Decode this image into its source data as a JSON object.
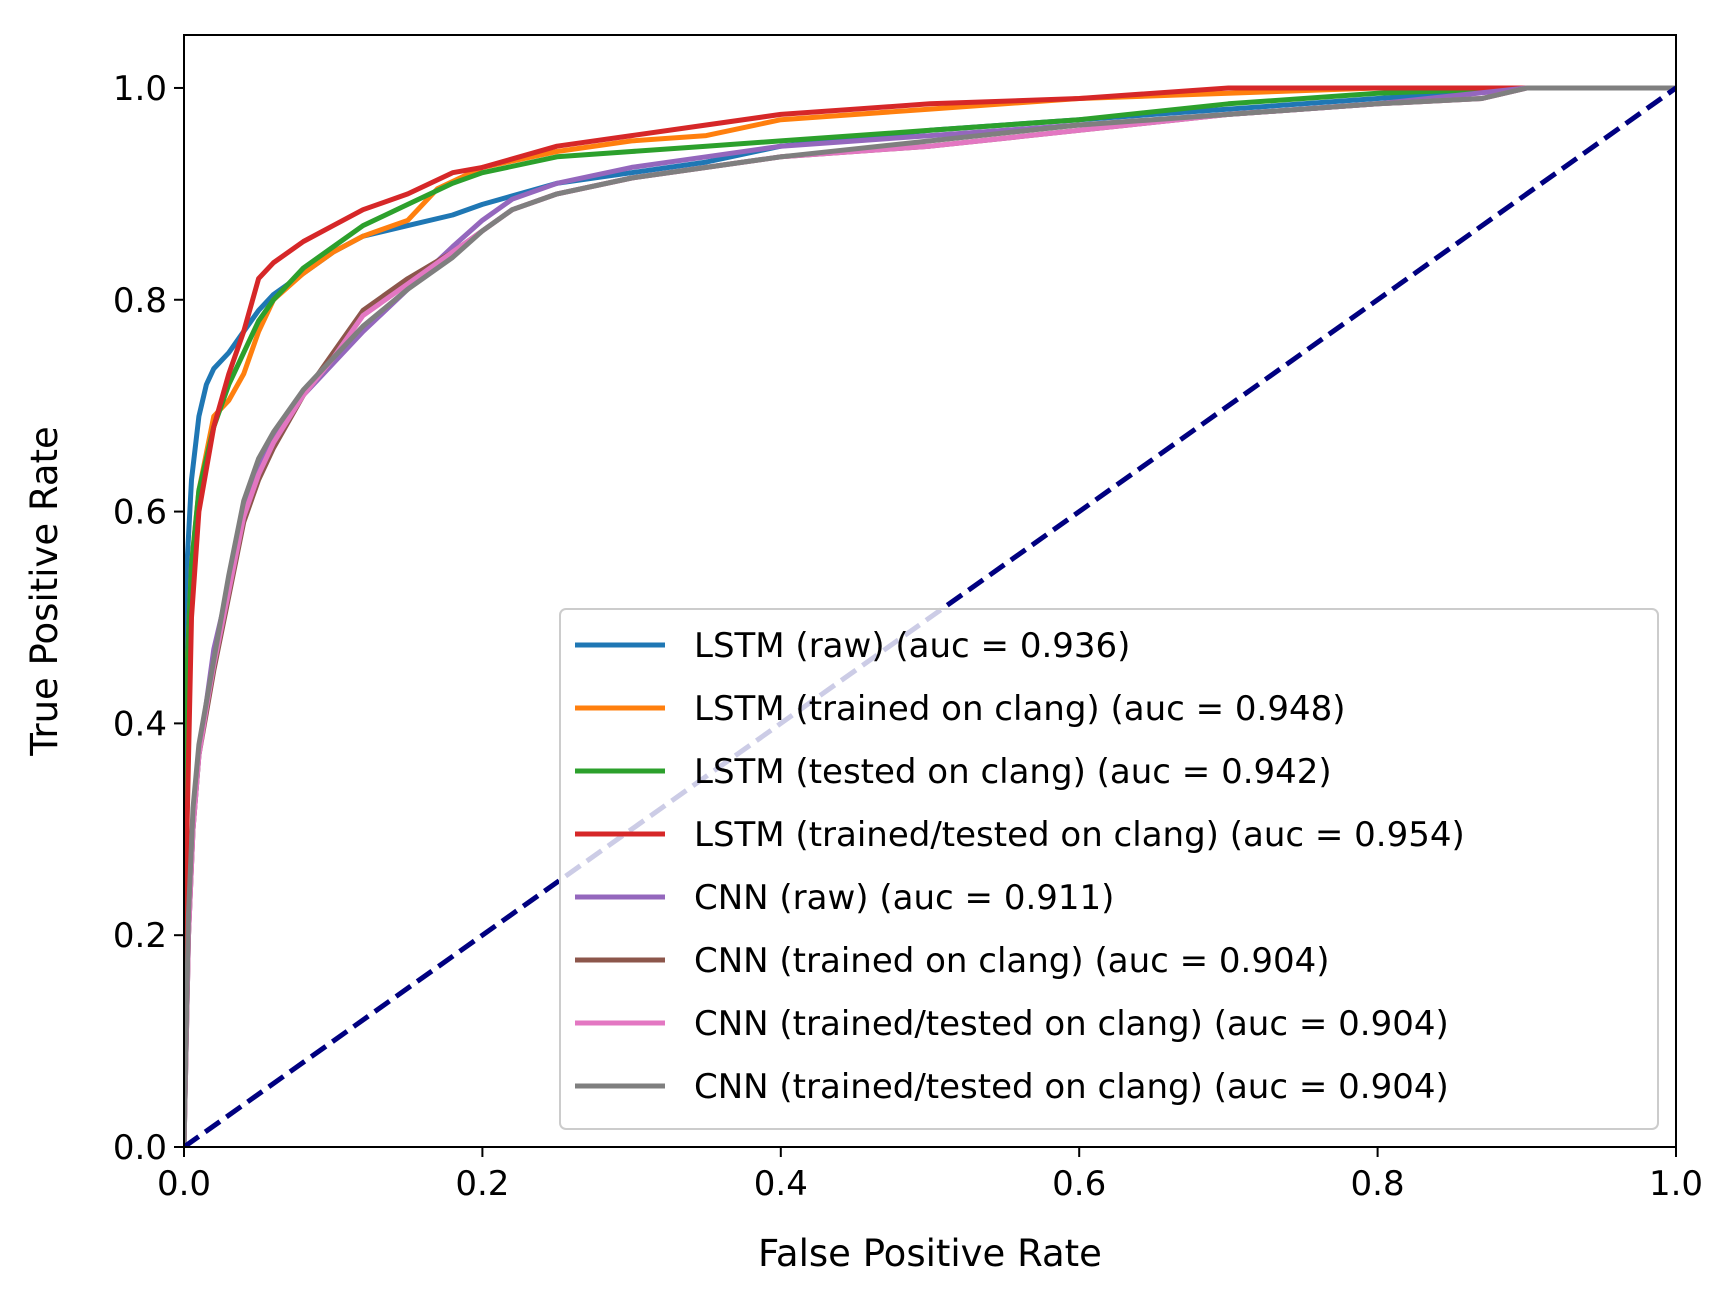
{
  "chart_data": {
    "type": "line",
    "title": "",
    "xlabel": "False Positive Rate",
    "ylabel": "True Positive Rate",
    "xlim": [
      0.0,
      1.0
    ],
    "ylim": [
      0.0,
      1.05
    ],
    "xticks": [
      0.0,
      0.2,
      0.4,
      0.6,
      0.8,
      1.0
    ],
    "yticks": [
      0.0,
      0.2,
      0.4,
      0.6,
      0.8,
      1.0
    ],
    "xtick_labels": [
      "0.0",
      "0.2",
      "0.4",
      "0.6",
      "0.8",
      "1.0"
    ],
    "ytick_labels": [
      "0.0",
      "0.2",
      "0.4",
      "0.6",
      "0.8",
      "1.0"
    ],
    "grid": false,
    "legend_position": "lower-right",
    "series": [
      {
        "name": "LSTM (raw) (auc = 0.936)",
        "color": "#1f77b4",
        "x": [
          0,
          0.002,
          0.005,
          0.01,
          0.015,
          0.02,
          0.03,
          0.04,
          0.05,
          0.06,
          0.08,
          0.1,
          0.12,
          0.15,
          0.18,
          0.2,
          0.25,
          0.3,
          0.35,
          0.4,
          0.5,
          0.6,
          0.7,
          0.8,
          0.9,
          1.0
        ],
        "y": [
          0,
          0.55,
          0.63,
          0.69,
          0.72,
          0.735,
          0.75,
          0.77,
          0.79,
          0.805,
          0.825,
          0.845,
          0.86,
          0.87,
          0.88,
          0.89,
          0.91,
          0.92,
          0.93,
          0.945,
          0.96,
          0.97,
          0.98,
          0.99,
          1.0,
          1.0
        ]
      },
      {
        "name": "LSTM (trained on clang) (auc = 0.948)",
        "color": "#ff7f0e",
        "x": [
          0,
          0.002,
          0.005,
          0.01,
          0.02,
          0.03,
          0.04,
          0.05,
          0.06,
          0.08,
          0.1,
          0.12,
          0.15,
          0.17,
          0.2,
          0.25,
          0.3,
          0.35,
          0.4,
          0.5,
          0.6,
          0.7,
          0.8,
          0.9,
          1.0
        ],
        "y": [
          0,
          0.45,
          0.55,
          0.62,
          0.69,
          0.705,
          0.73,
          0.77,
          0.8,
          0.825,
          0.845,
          0.86,
          0.875,
          0.905,
          0.925,
          0.94,
          0.95,
          0.955,
          0.97,
          0.98,
          0.99,
          0.995,
          1.0,
          1.0,
          1.0
        ]
      },
      {
        "name": "LSTM (tested on clang) (auc = 0.942)",
        "color": "#2ca02c",
        "x": [
          0,
          0.002,
          0.005,
          0.01,
          0.02,
          0.03,
          0.04,
          0.05,
          0.06,
          0.08,
          0.1,
          0.12,
          0.15,
          0.18,
          0.2,
          0.25,
          0.3,
          0.35,
          0.4,
          0.5,
          0.6,
          0.7,
          0.8,
          0.9,
          1.0
        ],
        "y": [
          0,
          0.45,
          0.55,
          0.62,
          0.68,
          0.72,
          0.75,
          0.78,
          0.8,
          0.83,
          0.85,
          0.87,
          0.89,
          0.91,
          0.92,
          0.935,
          0.94,
          0.945,
          0.95,
          0.96,
          0.97,
          0.985,
          0.995,
          1.0,
          1.0
        ]
      },
      {
        "name": "LSTM (trained/tested on clang) (auc = 0.954)",
        "color": "#d62728",
        "x": [
          0,
          0.002,
          0.005,
          0.01,
          0.02,
          0.03,
          0.04,
          0.05,
          0.06,
          0.08,
          0.1,
          0.12,
          0.15,
          0.18,
          0.2,
          0.25,
          0.3,
          0.35,
          0.4,
          0.45,
          0.5,
          0.6,
          0.7,
          0.8,
          0.9,
          1.0
        ],
        "y": [
          0,
          0.3,
          0.5,
          0.6,
          0.68,
          0.73,
          0.77,
          0.82,
          0.835,
          0.855,
          0.87,
          0.885,
          0.9,
          0.92,
          0.925,
          0.945,
          0.955,
          0.965,
          0.975,
          0.98,
          0.985,
          0.99,
          1.0,
          1.0,
          1.0,
          1.0
        ]
      },
      {
        "name": "CNN (raw) (auc = 0.911)",
        "color": "#9467bd",
        "x": [
          0,
          0.003,
          0.006,
          0.01,
          0.015,
          0.02,
          0.03,
          0.04,
          0.05,
          0.06,
          0.08,
          0.1,
          0.12,
          0.15,
          0.18,
          0.2,
          0.22,
          0.25,
          0.3,
          0.35,
          0.4,
          0.5,
          0.6,
          0.7,
          0.8,
          0.9,
          1.0
        ],
        "y": [
          0,
          0.2,
          0.3,
          0.37,
          0.42,
          0.47,
          0.53,
          0.6,
          0.645,
          0.67,
          0.71,
          0.74,
          0.77,
          0.81,
          0.85,
          0.875,
          0.895,
          0.91,
          0.925,
          0.935,
          0.945,
          0.955,
          0.965,
          0.975,
          0.985,
          1.0,
          1.0
        ]
      },
      {
        "name": "CNN (trained on clang) (auc = 0.904)",
        "color": "#8c564b",
        "x": [
          0,
          0.003,
          0.006,
          0.01,
          0.015,
          0.02,
          0.03,
          0.04,
          0.05,
          0.06,
          0.08,
          0.1,
          0.12,
          0.15,
          0.18,
          0.2,
          0.22,
          0.25,
          0.3,
          0.35,
          0.4,
          0.5,
          0.6,
          0.7,
          0.8,
          0.87,
          0.9,
          1.0
        ],
        "y": [
          0,
          0.2,
          0.3,
          0.37,
          0.41,
          0.45,
          0.52,
          0.59,
          0.63,
          0.66,
          0.71,
          0.75,
          0.79,
          0.82,
          0.845,
          0.865,
          0.885,
          0.9,
          0.915,
          0.925,
          0.935,
          0.945,
          0.96,
          0.975,
          0.985,
          0.99,
          1.0,
          1.0
        ]
      },
      {
        "name": "CNN (trained/tested on clang) (auc = 0.904)",
        "color": "#e377c2",
        "x": [
          0,
          0.003,
          0.006,
          0.01,
          0.015,
          0.02,
          0.03,
          0.04,
          0.05,
          0.06,
          0.08,
          0.1,
          0.12,
          0.15,
          0.18,
          0.2,
          0.22,
          0.25,
          0.3,
          0.35,
          0.4,
          0.5,
          0.6,
          0.7,
          0.8,
          0.87,
          0.9,
          1.0
        ],
        "y": [
          0,
          0.2,
          0.3,
          0.37,
          0.415,
          0.455,
          0.525,
          0.595,
          0.635,
          0.665,
          0.71,
          0.745,
          0.785,
          0.815,
          0.845,
          0.865,
          0.885,
          0.9,
          0.915,
          0.925,
          0.935,
          0.945,
          0.96,
          0.975,
          0.985,
          0.99,
          1.0,
          1.0
        ]
      },
      {
        "name": "CNN (trained/tested on clang) (auc = 0.904)",
        "color": "#7f7f7f",
        "x": [
          0,
          0.003,
          0.006,
          0.01,
          0.015,
          0.02,
          0.03,
          0.04,
          0.05,
          0.06,
          0.08,
          0.1,
          0.12,
          0.15,
          0.18,
          0.2,
          0.22,
          0.25,
          0.3,
          0.35,
          0.4,
          0.5,
          0.6,
          0.7,
          0.8,
          0.87,
          0.9,
          1.0
        ],
        "y": [
          0,
          0.22,
          0.32,
          0.38,
          0.42,
          0.46,
          0.54,
          0.61,
          0.65,
          0.675,
          0.715,
          0.745,
          0.775,
          0.81,
          0.84,
          0.865,
          0.885,
          0.9,
          0.915,
          0.925,
          0.935,
          0.95,
          0.965,
          0.975,
          0.985,
          0.99,
          1.0,
          1.0
        ]
      }
    ],
    "reference_line": {
      "name": "chance",
      "color": "#000080",
      "style": "dashed",
      "x": [
        0,
        1
      ],
      "y": [
        0,
        1
      ]
    }
  }
}
